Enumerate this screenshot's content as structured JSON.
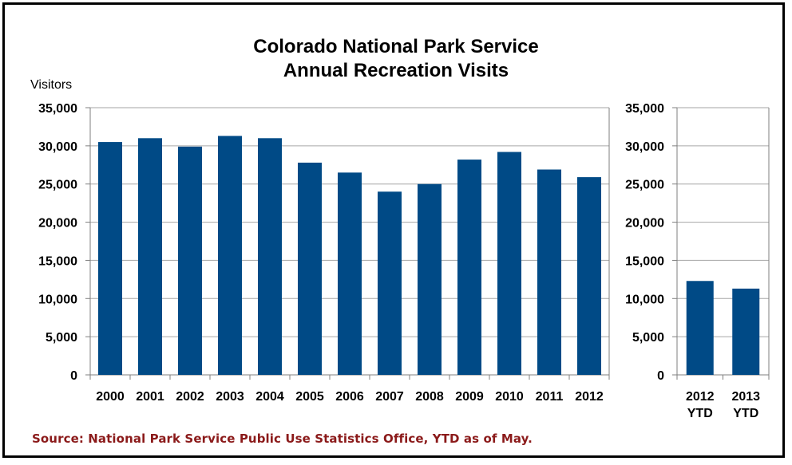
{
  "page": {
    "title_line1": "Colorado National Park Service",
    "title_line2": "Annual Recreation Visits",
    "source_note": "Source: National Park Service Public Use Statistics Office, YTD as of May."
  },
  "colors": {
    "bar": "#004a86",
    "grid": "#a6a6a6",
    "axis": "#7f7f7f",
    "source_text": "#8b1a1a",
    "border": "#000000"
  },
  "chart_data": [
    {
      "type": "bar",
      "title": "Colorado National Park Service Annual Recreation Visits",
      "ylabel": "Visitors",
      "xlabel": "",
      "ylim": [
        0,
        35000
      ],
      "yticks": [
        "0",
        "5,000",
        "10,000",
        "15,000",
        "20,000",
        "25,000",
        "30,000",
        "35,000"
      ],
      "grid": true,
      "categories": [
        "2000",
        "2001",
        "2002",
        "2003",
        "2004",
        "2005",
        "2006",
        "2007",
        "2008",
        "2009",
        "2010",
        "2011",
        "2012"
      ],
      "values": [
        30500,
        31000,
        29900,
        31300,
        31000,
        27800,
        26500,
        24000,
        25000,
        28200,
        29200,
        26900,
        25900
      ]
    },
    {
      "type": "bar",
      "ylim": [
        0,
        35000
      ],
      "yticks": [
        "0",
        "5,000",
        "10,000",
        "15,000",
        "20,000",
        "25,000",
        "30,000",
        "35,000"
      ],
      "grid": true,
      "categories": [
        "2012 YTD",
        "2013 YTD"
      ],
      "category_lines": [
        [
          "2012",
          "YTD"
        ],
        [
          "2013",
          "YTD"
        ]
      ],
      "values": [
        12300,
        11300
      ]
    }
  ]
}
